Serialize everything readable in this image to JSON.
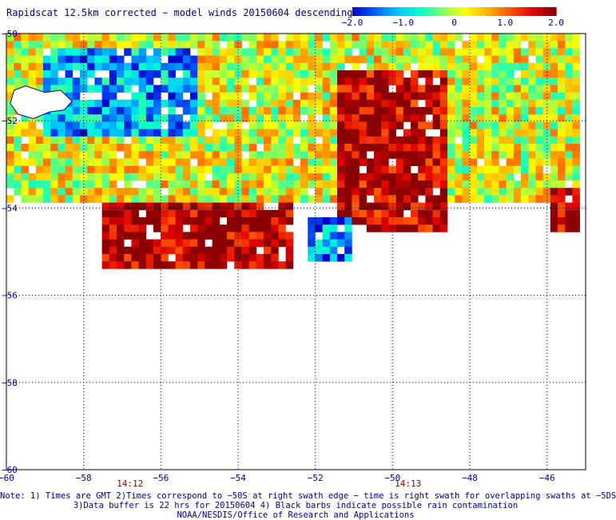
{
  "title": "Rapidscat 12.5km corrected − model winds 20150604 descending",
  "legend": {
    "ticks": [
      "−2.0",
      "−1.0",
      "0",
      "1.0",
      "2.0"
    ],
    "min": -2.0,
    "max": 2.0,
    "colors": [
      "#0000c8",
      "#0060ff",
      "#00c8ff",
      "#00ffd0",
      "#80ff60",
      "#ffff00",
      "#ffb000",
      "#ff5000",
      "#e00000",
      "#8b0000"
    ]
  },
  "chart_data": {
    "type": "heatmap",
    "title": "Rapidscat 12.5km corrected − model winds 20150604 descending",
    "xlim": [
      -60,
      -45
    ],
    "ylim": [
      -60,
      -50
    ],
    "x_ticks": [
      -60,
      -58,
      -56,
      -54,
      -52,
      -50,
      -48,
      -46
    ],
    "y_ticks": [
      -50,
      -52,
      -54,
      -56,
      -58,
      -60
    ],
    "x_tick_labels": [
      "−60",
      "−58",
      "−56",
      "−54",
      "−52",
      "−50",
      "−48",
      "−46"
    ],
    "y_tick_labels": [
      "−50",
      "−52",
      "−54",
      "−56",
      "−58",
      "−60"
    ],
    "grid": true,
    "value_range": [
      -2.0,
      2.0
    ],
    "time_labels": [
      {
        "text": "14:12",
        "lon": -56.8
      },
      {
        "text": "14:13",
        "lon": -49.6
      }
    ],
    "regions": [
      {
        "lon": [
          -60,
          -45.2
        ],
        "lat": [
          -53.8,
          -50
        ],
        "value": 0.2
      },
      {
        "lon": [
          -57.5,
          -52.5
        ],
        "lat": [
          -55.4,
          -53.8
        ],
        "value": 1.9
      },
      {
        "lon": [
          -51.5,
          -48.5
        ],
        "lat": [
          -54.5,
          -50.8
        ],
        "value": 1.8
      },
      {
        "lon": [
          -59,
          -55
        ],
        "lat": [
          -52.3,
          -50.3
        ],
        "value": -1.2
      },
      {
        "lon": [
          -52.2,
          -51
        ],
        "lat": [
          -55.2,
          -54.2
        ],
        "value": -1.3
      },
      {
        "lon": [
          -46,
          -45.2
        ],
        "lat": [
          -54.5,
          -53.6
        ],
        "value": 1.9
      }
    ],
    "coastline_note": "Falkland Islands outline near lon -59, lat -51.5"
  },
  "notes": [
    "Note: 1) Times are GMT 2)Times correspond to −50S at right swath edge − time is right swath for overlapping swaths at −5DS",
    "3)Data buffer is 22 hrs for 20150604 4) Black barbs indicate possible rain contamination",
    "NOAA/NESDIS/Office of Research and Applications"
  ]
}
